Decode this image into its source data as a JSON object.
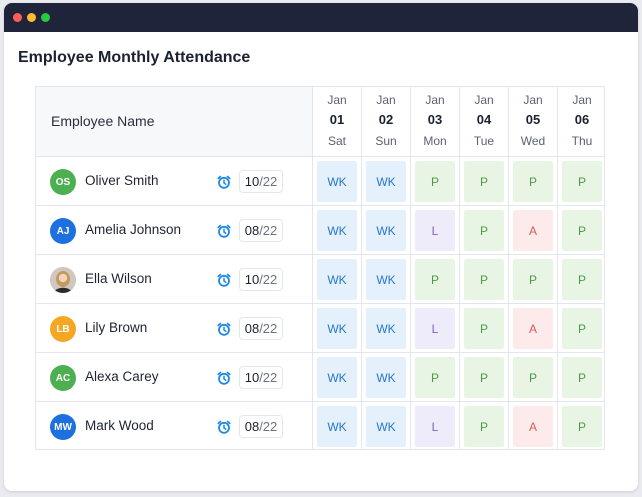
{
  "window": {
    "dot_colors": [
      "#ff5f57",
      "#febc2e",
      "#28c840"
    ]
  },
  "page_title": "Employee Monthly Attendance",
  "table": {
    "name_header": "Employee Name",
    "days": [
      {
        "month": "Jan",
        "date": "01",
        "weekday": "Sat"
      },
      {
        "month": "Jan",
        "date": "02",
        "weekday": "Sun"
      },
      {
        "month": "Jan",
        "date": "03",
        "weekday": "Mon"
      },
      {
        "month": "Jan",
        "date": "04",
        "weekday": "Tue"
      },
      {
        "month": "Jan",
        "date": "05",
        "weekday": "Wed"
      },
      {
        "month": "Jan",
        "date": "06",
        "weekday": "Thu"
      }
    ],
    "status_colors": {
      "WK": {
        "bg": "#e4f0fc",
        "fg": "#2678c8"
      },
      "P": {
        "bg": "#e8f5e4",
        "fg": "#4a9a49"
      },
      "L": {
        "bg": "#eeebfa",
        "fg": "#8563c9"
      },
      "A": {
        "bg": "#fdeaea",
        "fg": "#db5a5a"
      }
    },
    "employees": [
      {
        "initials": "OS",
        "avatar_color": "#4caf50",
        "photo": false,
        "name": "Oliver Smith",
        "icon": "alarm-clock-icon",
        "present": "10",
        "total": "/22",
        "statuses": [
          "WK",
          "WK",
          "P",
          "P",
          "P",
          "P"
        ]
      },
      {
        "initials": "AJ",
        "avatar_color": "#1e6fe0",
        "photo": false,
        "name": "Amelia Johnson",
        "icon": "alarm-clock-icon",
        "present": "08",
        "total": "/22",
        "statuses": [
          "WK",
          "WK",
          "L",
          "P",
          "A",
          "P"
        ]
      },
      {
        "initials": "",
        "avatar_color": "#d9d4cf",
        "photo": true,
        "name": "Ella Wilson",
        "icon": "alarm-clock-icon",
        "present": "10",
        "total": "/22",
        "statuses": [
          "WK",
          "WK",
          "P",
          "P",
          "P",
          "P"
        ]
      },
      {
        "initials": "LB",
        "avatar_color": "#f5a623",
        "photo": false,
        "name": "Lily Brown",
        "icon": "alarm-clock-icon",
        "present": "08",
        "total": "/22",
        "statuses": [
          "WK",
          "WK",
          "L",
          "P",
          "A",
          "P"
        ]
      },
      {
        "initials": "AC",
        "avatar_color": "#4caf50",
        "photo": false,
        "name": "Alexa Carey",
        "icon": "alarm-clock-icon",
        "present": "10",
        "total": "/22",
        "statuses": [
          "WK",
          "WK",
          "P",
          "P",
          "P",
          "P"
        ]
      },
      {
        "initials": "MW",
        "avatar_color": "#1e6fe0",
        "photo": false,
        "name": "Mark Wood",
        "icon": "alarm-clock-icon",
        "present": "08",
        "total": "/22",
        "statuses": [
          "WK",
          "WK",
          "L",
          "P",
          "A",
          "P"
        ]
      }
    ]
  }
}
